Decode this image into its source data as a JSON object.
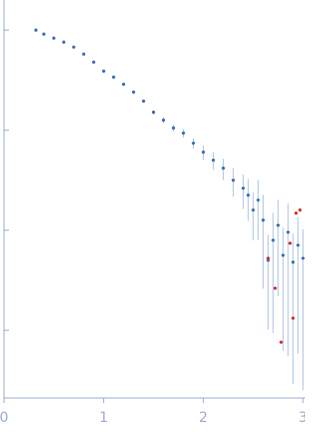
{
  "chart_data": {
    "type": "scatter",
    "yscale": "log",
    "xlim": [
      0,
      3.01
    ],
    "xticks": [
      0,
      1,
      2,
      3
    ],
    "ylim": [
      0.00021,
      2
    ],
    "yticks": [
      1,
      0.1,
      0.01,
      0.001
    ],
    "series": [
      {
        "color": "#3a6bb5",
        "error_color": "#a9c2e2",
        "x": [
          0.32,
          0.4,
          0.5,
          0.6,
          0.7,
          0.8,
          0.9,
          1.0,
          1.1,
          1.2,
          1.3,
          1.4,
          1.5,
          1.6,
          1.7,
          1.8,
          1.9,
          2.0,
          2.1,
          2.2,
          2.3,
          2.4,
          2.45,
          2.5,
          2.55,
          2.6,
          2.65,
          2.7,
          2.75,
          2.8,
          2.85,
          2.9,
          2.95,
          3.0
        ],
        "values": [
          1.0,
          0.912,
          0.832,
          0.759,
          0.676,
          0.575,
          0.479,
          0.389,
          0.339,
          0.288,
          0.24,
          0.195,
          0.151,
          0.126,
          0.105,
          0.0933,
          0.0741,
          0.0603,
          0.0501,
          0.0417,
          0.0316,
          0.0263,
          0.0224,
          0.0159,
          0.02,
          0.0126,
          0.00501,
          0.00794,
          0.0112,
          0.00562,
          0.00955,
          0.00479,
          0.00708,
          0.00525
        ],
        "errors": [
          0.005,
          0.005,
          0.005,
          0.005,
          0.005,
          0.006,
          0.006,
          0.006,
          0.006,
          0.006,
          0.006,
          0.007,
          0.007,
          0.008,
          0.008,
          0.009,
          0.009,
          0.01,
          0.01,
          0.01,
          0.01,
          0.01,
          0.01,
          0.008,
          0.012,
          0.01,
          0.004,
          0.007,
          0.009,
          0.005,
          0.009,
          0.0045,
          0.0065,
          0.005
        ]
      },
      {
        "color": "#d62728",
        "x": [
          2.65,
          2.72,
          2.78,
          2.87,
          2.9,
          2.93,
          2.97
        ],
        "values": [
          0.00525,
          0.00263,
          0.000759,
          0.00741,
          0.00132,
          0.0148,
          0.0159
        ]
      }
    ]
  }
}
